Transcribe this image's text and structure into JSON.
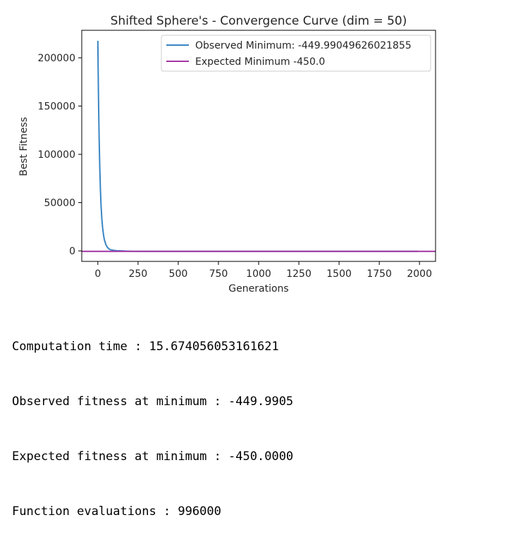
{
  "chart_data": {
    "type": "line",
    "title": "Shifted Sphere's - Convergence Curve (dim = 50)",
    "xlabel": "Generations",
    "ylabel": "Best Fitness",
    "xlim": [
      -100,
      2100
    ],
    "ylim": [
      -10880,
      228480
    ],
    "x_ticks": [
      0,
      250,
      500,
      750,
      1000,
      1250,
      1500,
      1750,
      2000
    ],
    "y_ticks": [
      0,
      50000,
      100000,
      150000,
      200000
    ],
    "legend_position": "upper right",
    "grid": false,
    "series": [
      {
        "name": "Observed Minimum: -449.99049626021855",
        "color": "#3a85c4",
        "x": [
          0,
          4,
          8,
          12,
          16,
          20,
          25,
          30,
          35,
          40,
          50,
          60,
          70,
          80,
          100,
          120,
          150,
          200,
          300,
          500,
          1000,
          1500,
          1990
        ],
        "y": [
          217600,
          160000,
          118000,
          87000,
          64000,
          47000,
          33000,
          23500,
          17000,
          12000,
          6500,
          3500,
          2000,
          1200,
          500,
          150,
          0,
          -350,
          -440,
          -449,
          -449.9,
          -449.99,
          -449.99
        ]
      },
      {
        "name": "Expected Minimum -450.0",
        "color": "#a335a3",
        "type": "hline",
        "y": -450.0
      }
    ]
  },
  "output": {
    "line1": "Computation time : 15.674056053161621",
    "line2": "Observed fitness at minimum : -449.9905",
    "line3": "Expected fitness at minimum : -450.0000",
    "line4": "Function evaluations : 996000"
  }
}
